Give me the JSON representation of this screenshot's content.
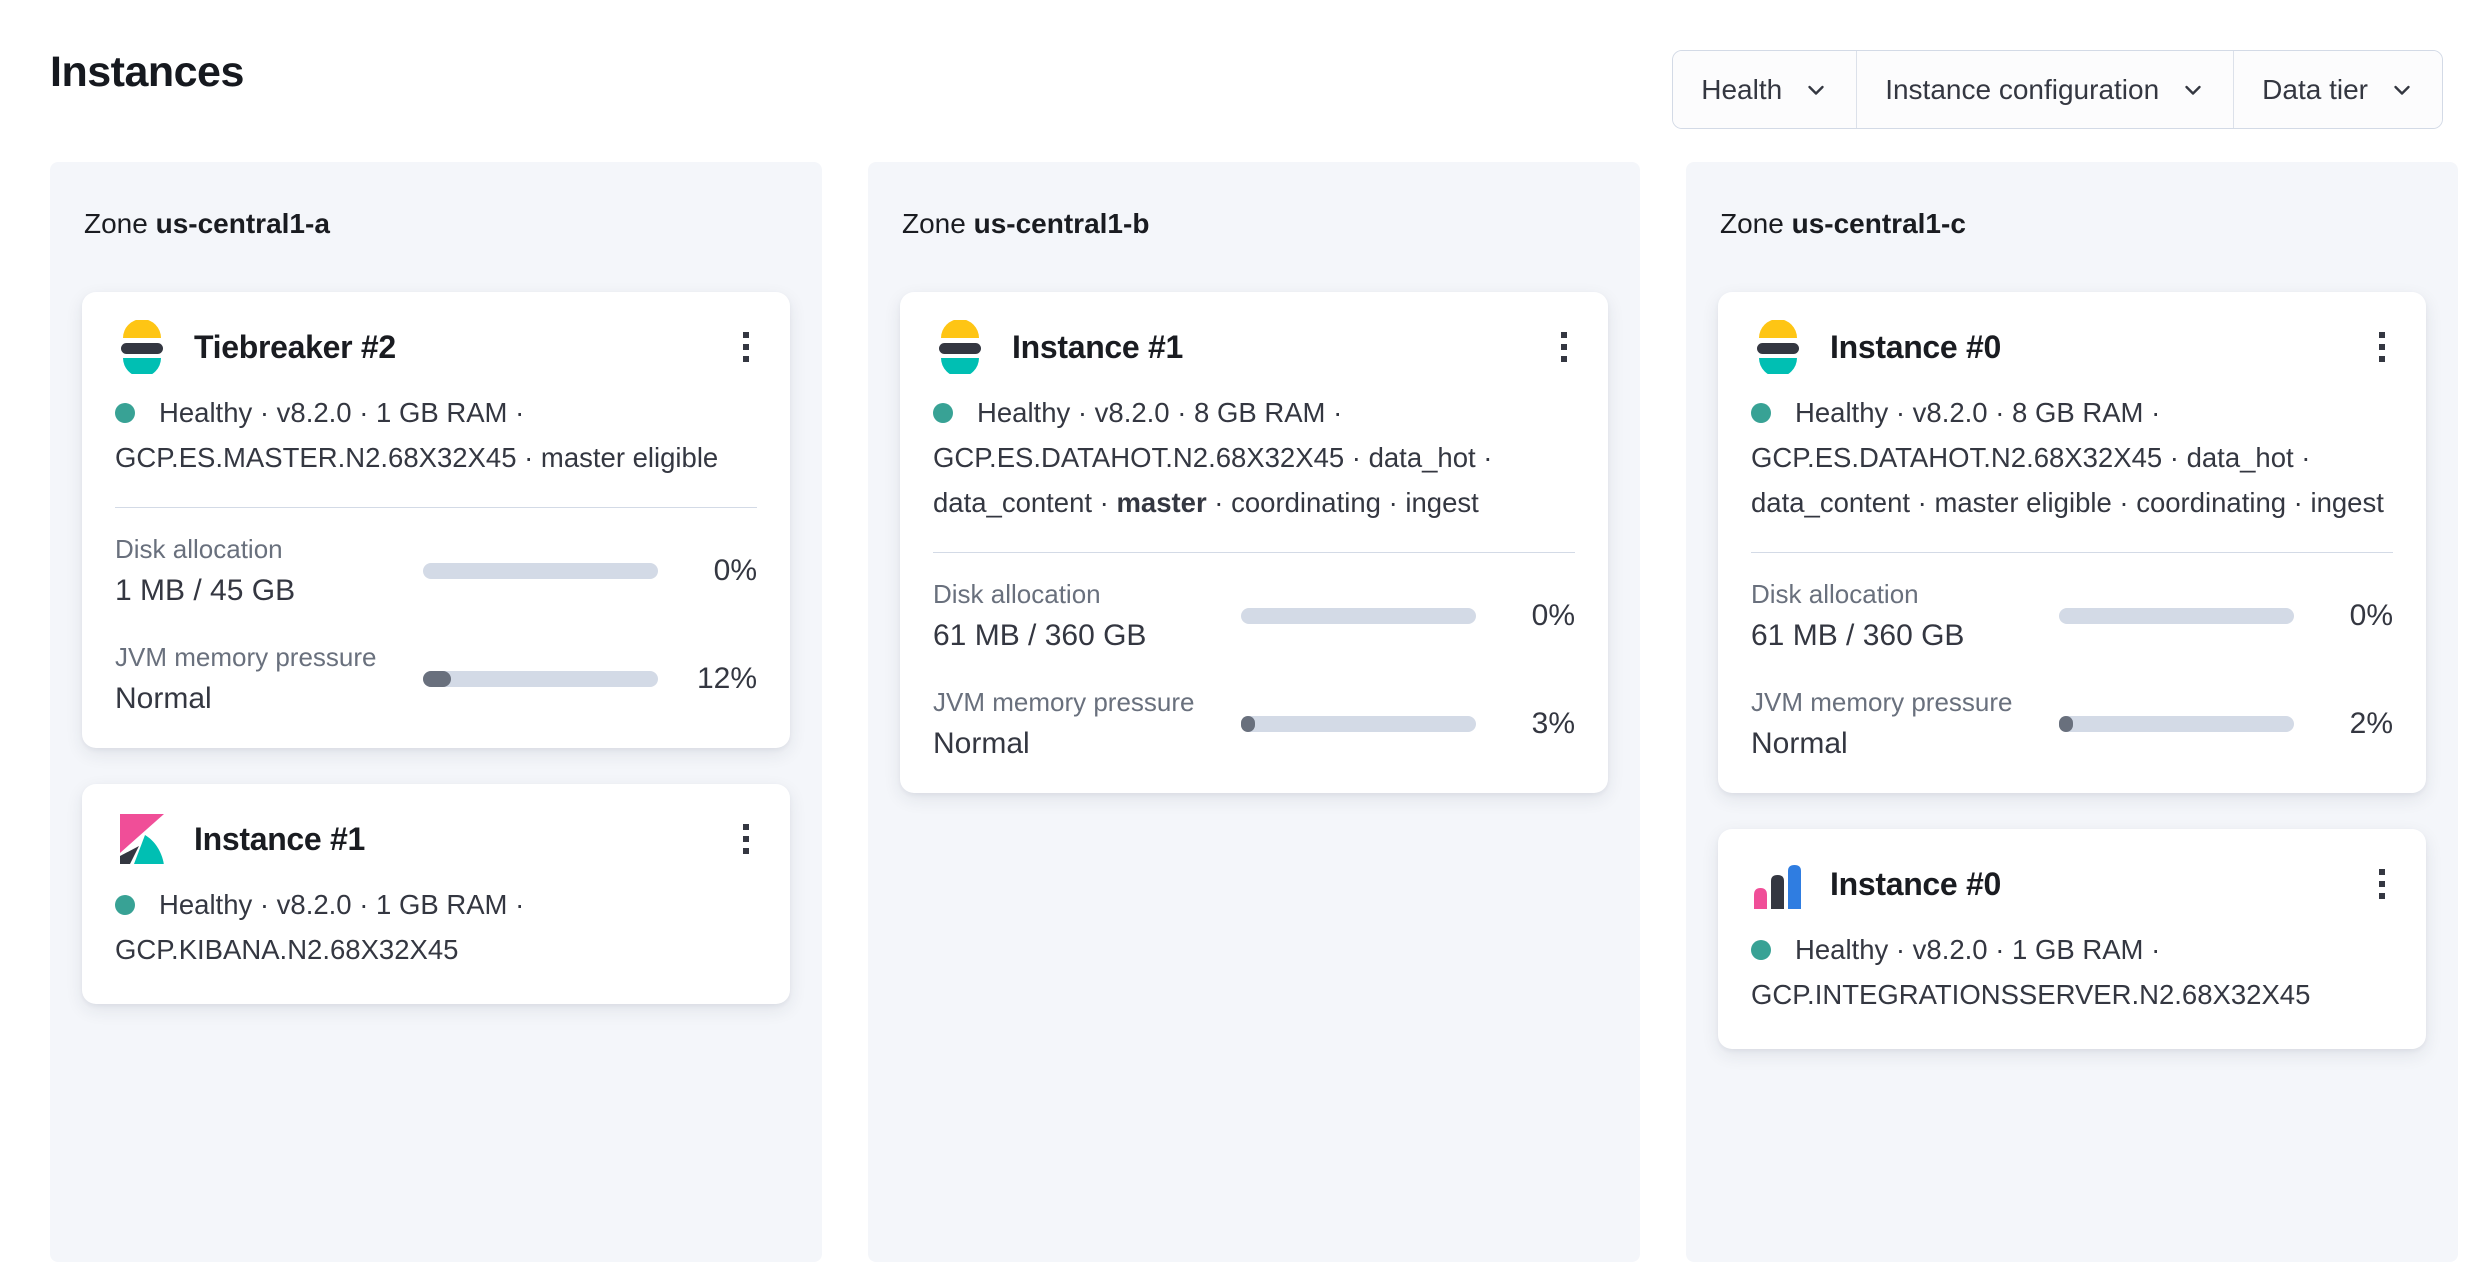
{
  "page": {
    "title": "Instances"
  },
  "labels": {
    "zone": "Zone"
  },
  "filters": [
    {
      "label": "Health"
    },
    {
      "label": "Instance configuration"
    },
    {
      "label": "Data tier"
    }
  ],
  "colors": {
    "health_dot": "#38A295",
    "bar_track": "#D3DAE6",
    "bar_fill": "#69707D",
    "logo_yellow": "#FEC514",
    "logo_dark": "#343741",
    "logo_teal": "#00BFB3",
    "logo_pink": "#F04E98",
    "logo_blue": "#2F7DE1",
    "panel_bg": "#F4F6FA"
  },
  "zones": [
    {
      "name": "us-central1-a",
      "cards": [
        {
          "logo": "elasticsearch",
          "title": "Tiebreaker #2",
          "health_segments": [
            {
              "text": "Healthy · v8.2.0 · 1 GB RAM · GCP.ES.MASTER.N2.68X32X45 · master eligible",
              "bold": false
            }
          ],
          "stats": [
            {
              "label": "Disk allocation",
              "value": "1 MB / 45 GB",
              "percent": 0,
              "percent_label": "0%"
            },
            {
              "label": "JVM memory pressure",
              "value": "Normal",
              "percent": 12,
              "percent_label": "12%"
            }
          ]
        },
        {
          "logo": "kibana",
          "title": "Instance #1",
          "health_segments": [
            {
              "text": "Healthy · v8.2.0 · 1 GB RAM · GCP.KIBANA.N2.68X32X45",
              "bold": false
            }
          ],
          "stats": []
        }
      ]
    },
    {
      "name": "us-central1-b",
      "cards": [
        {
          "logo": "elasticsearch",
          "title": "Instance #1",
          "health_segments": [
            {
              "text": "Healthy · v8.2.0 · 8 GB RAM · GCP.ES.DATAHOT.N2.68X32X45 · data_hot · data_content · ",
              "bold": false
            },
            {
              "text": "master",
              "bold": true
            },
            {
              "text": " · coordinating · ingest",
              "bold": false
            }
          ],
          "stats": [
            {
              "label": "Disk allocation",
              "value": "61 MB / 360 GB",
              "percent": 0,
              "percent_label": "0%"
            },
            {
              "label": "JVM memory pressure",
              "value": "Normal",
              "percent": 3,
              "percent_label": "3%"
            }
          ]
        }
      ]
    },
    {
      "name": "us-central1-c",
      "cards": [
        {
          "logo": "elasticsearch",
          "title": "Instance #0",
          "health_segments": [
            {
              "text": "Healthy · v8.2.0 · 8 GB RAM · GCP.ES.DATAHOT.N2.68X32X45 · data_hot · data_content · master eligible · coordinating · ingest",
              "bold": false
            }
          ],
          "stats": [
            {
              "label": "Disk allocation",
              "value": "61 MB / 360 GB",
              "percent": 0,
              "percent_label": "0%"
            },
            {
              "label": "JVM memory pressure",
              "value": "Normal",
              "percent": 2,
              "percent_label": "2%"
            }
          ]
        },
        {
          "logo": "integrations_server",
          "title": "Instance #0",
          "health_segments": [
            {
              "text": "Healthy · v8.2.0 · 1 GB RAM · GCP.INTEGRATIONSSERVER.N2.68X32X45",
              "bold": false
            }
          ],
          "stats": []
        }
      ]
    }
  ]
}
